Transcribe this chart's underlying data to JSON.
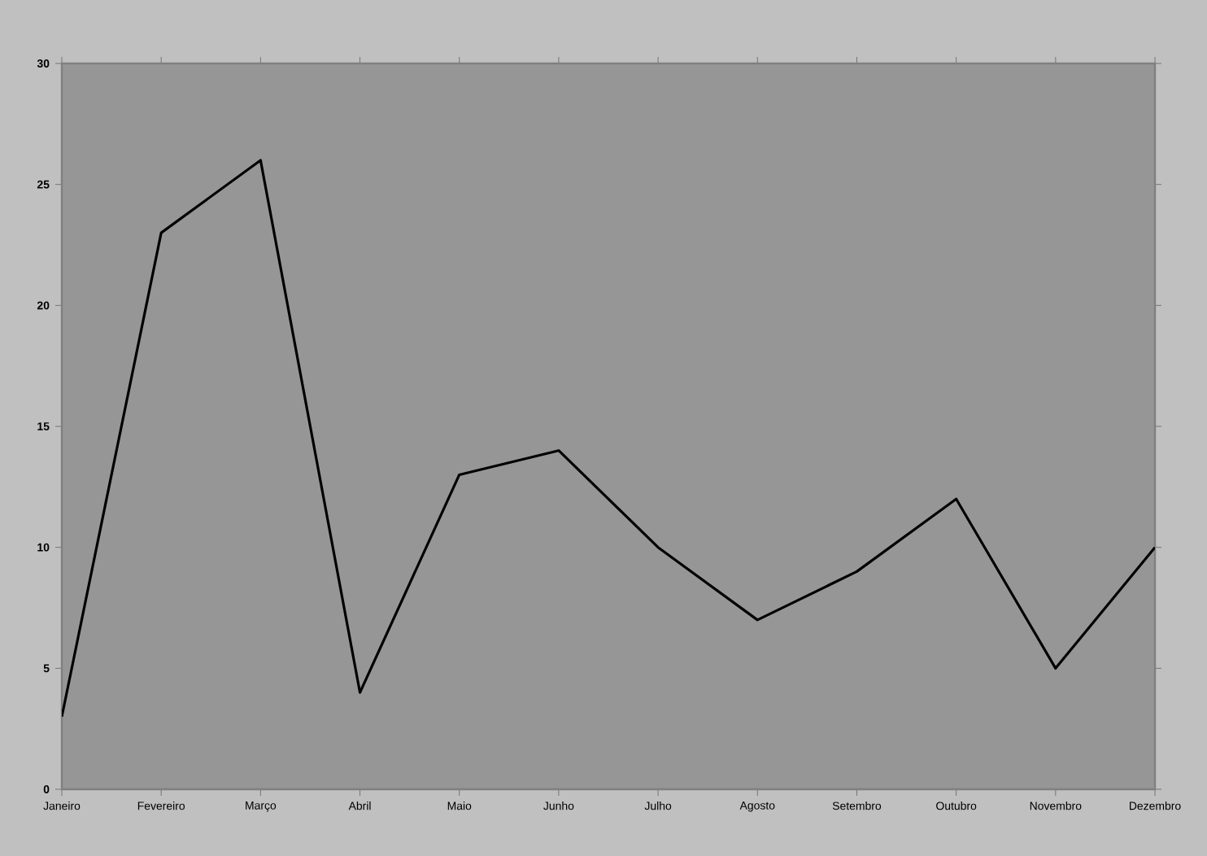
{
  "chart_data": {
    "type": "line",
    "categories": [
      "Janeiro",
      "Fevereiro",
      "Março",
      "Abril",
      "Maio",
      "Junho",
      "Julho",
      "Agosto",
      "Setembro",
      "Outubro",
      "Novembro",
      "Dezembro"
    ],
    "values": [
      3,
      23,
      26,
      4,
      13,
      14,
      10,
      7,
      9,
      12,
      5,
      10
    ],
    "color": "#000000",
    "ylim": [
      0,
      30
    ],
    "yticks": [
      0,
      5,
      10,
      15,
      20,
      25,
      30
    ],
    "grid": false,
    "marker": "none",
    "line_style": "solid"
  }
}
